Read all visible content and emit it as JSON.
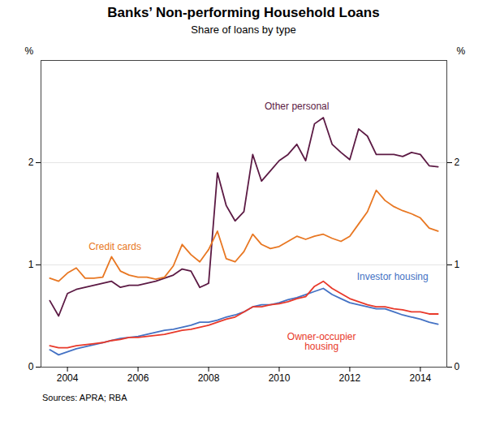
{
  "chart_data": {
    "type": "line",
    "title": "Banks’ Non-performing Household Loans",
    "subtitle": "Share of loans by type",
    "source": "Sources:   APRA; RBA",
    "ylabel": "%",
    "y2label": "%",
    "xlim": [
      2003.25,
      2014.75
    ],
    "xticks": [
      2004,
      2006,
      2008,
      2010,
      2012,
      2014
    ],
    "ylim": [
      0,
      3.0
    ],
    "yticks": [
      0,
      1,
      2
    ],
    "y2lim": [
      0,
      3.0
    ],
    "y2ticks": [
      0,
      1,
      2
    ],
    "grid": true,
    "x": [
      2003.5,
      2003.75,
      2004.0,
      2004.25,
      2004.5,
      2004.75,
      2005.0,
      2005.25,
      2005.5,
      2005.75,
      2006.0,
      2006.25,
      2006.5,
      2006.75,
      2007.0,
      2007.25,
      2007.5,
      2007.75,
      2008.0,
      2008.25,
      2008.5,
      2008.75,
      2009.0,
      2009.25,
      2009.5,
      2009.75,
      2010.0,
      2010.25,
      2010.5,
      2010.75,
      2011.0,
      2011.25,
      2011.5,
      2011.75,
      2012.0,
      2012.25,
      2012.5,
      2012.75,
      2013.0,
      2013.25,
      2013.5,
      2013.75,
      2014.0,
      2014.25,
      2014.5
    ],
    "series": [
      {
        "color": "#5c1a44",
        "values": [
          0.65,
          0.5,
          0.72,
          0.76,
          0.78,
          0.8,
          0.82,
          0.84,
          0.78,
          0.8,
          0.8,
          0.82,
          0.84,
          0.87,
          0.9,
          0.96,
          0.94,
          0.78,
          0.82,
          1.9,
          1.58,
          1.43,
          1.52,
          2.08,
          1.82,
          1.92,
          2.02,
          2.08,
          2.18,
          2.02,
          2.38,
          2.44,
          2.18,
          2.1,
          2.03,
          2.33,
          2.26,
          2.08,
          2.08,
          2.08,
          2.06,
          2.1,
          2.08,
          1.97,
          1.96
        ]
      },
      {
        "color": "#e87722",
        "values": [
          0.87,
          0.84,
          0.92,
          0.97,
          0.87,
          0.87,
          0.88,
          1.08,
          0.94,
          0.9,
          0.88,
          0.88,
          0.86,
          0.88,
          0.99,
          1.2,
          1.1,
          1.03,
          1.15,
          1.33,
          1.06,
          1.03,
          1.13,
          1.3,
          1.2,
          1.16,
          1.18,
          1.23,
          1.28,
          1.25,
          1.28,
          1.3,
          1.26,
          1.23,
          1.28,
          1.4,
          1.52,
          1.73,
          1.63,
          1.57,
          1.53,
          1.5,
          1.46,
          1.36,
          1.33
        ]
      },
      {
        "color": "#4472c4",
        "values": [
          0.17,
          0.12,
          0.15,
          0.18,
          0.2,
          0.22,
          0.24,
          0.26,
          0.28,
          0.29,
          0.3,
          0.32,
          0.34,
          0.36,
          0.37,
          0.39,
          0.41,
          0.44,
          0.44,
          0.46,
          0.49,
          0.51,
          0.54,
          0.59,
          0.61,
          0.61,
          0.63,
          0.66,
          0.68,
          0.71,
          0.74,
          0.77,
          0.71,
          0.67,
          0.63,
          0.61,
          0.59,
          0.57,
          0.57,
          0.54,
          0.51,
          0.49,
          0.47,
          0.44,
          0.42
        ]
      },
      {
        "color": "#e8392a",
        "values": [
          0.21,
          0.19,
          0.19,
          0.21,
          0.22,
          0.23,
          0.24,
          0.26,
          0.27,
          0.29,
          0.29,
          0.3,
          0.31,
          0.32,
          0.34,
          0.36,
          0.37,
          0.39,
          0.41,
          0.44,
          0.47,
          0.49,
          0.54,
          0.59,
          0.59,
          0.61,
          0.62,
          0.64,
          0.67,
          0.69,
          0.79,
          0.84,
          0.77,
          0.72,
          0.67,
          0.64,
          0.61,
          0.59,
          0.59,
          0.57,
          0.56,
          0.54,
          0.54,
          0.52,
          0.52
        ]
      }
    ],
    "annotations": [
      {
        "text": "Other personal",
        "x": 2010.5,
        "y": 2.52,
        "color": "#5c1a44"
      },
      {
        "text": "Credit cards",
        "x": 2004.6,
        "y": 1.15,
        "color": "#e87722"
      },
      {
        "text": "Investor housing",
        "x": 2012.2,
        "y": 0.85,
        "color": "#4472c4"
      },
      {
        "text": "Owner-occupier\nhousing",
        "x": 2011.2,
        "y": 0.33,
        "color": "#e8392a"
      }
    ]
  }
}
